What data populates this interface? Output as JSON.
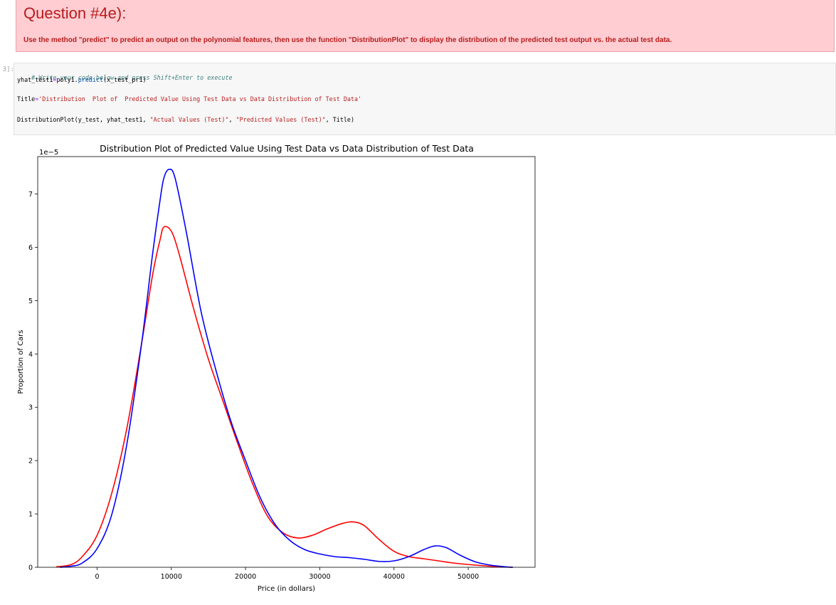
{
  "alert": {
    "heading": "Question #4e):",
    "instruction": "Use the method \"predict\" to predict an output on the polynomial features, then use the function \"DistributionPlot\" to display the distribution of the predicted test output vs. the actual test data."
  },
  "cell": {
    "prompt": "3]:",
    "comment": "# Write your code below and press Shift+Enter to execute",
    "line1_prefix": "yhat_test1",
    "line1_eq": "=",
    "line1_mid": "poly1.",
    "line1_fn": "predict",
    "line1_args": "(x_test_pr1)",
    "line2_var": "Title",
    "line2_eq": "=",
    "line2_str": "'Distribution  Plot of  Predicted Value Using Test Data vs Data Distribution of Test Data'",
    "line3_call": "DistributionPlot(y_test, yhat_test1, ",
    "line3_str1": "\"Actual Values (Test)\"",
    "line3_sep": ", ",
    "line3_str2": "\"Predicted Values (Test)\"",
    "line3_end": ", Title)"
  },
  "chart_data": {
    "type": "line",
    "title": "Distribution  Plot of  Predicted Value Using Test Data vs Data Distribution of Test Data",
    "xlabel": "Price (in dollars)",
    "ylabel": "Proportion of Cars",
    "scale_label": "1e−5",
    "xlim": [
      -8000,
      59000
    ],
    "ylim": [
      0,
      7.7
    ],
    "x_ticks": [
      0,
      10000,
      20000,
      30000,
      40000,
      50000
    ],
    "x_tick_labels": [
      "0",
      "10000",
      "20000",
      "30000",
      "40000",
      "50000"
    ],
    "y_ticks": [
      0,
      1,
      2,
      3,
      4,
      5,
      6,
      7
    ],
    "y_tick_labels": [
      "0",
      "1",
      "2",
      "3",
      "4",
      "5",
      "6",
      "7"
    ],
    "grid": false,
    "series": [
      {
        "color": "#ff0000",
        "points": [
          [
            -5500,
            0.01
          ],
          [
            -3500,
            0.05
          ],
          [
            -2000,
            0.2
          ],
          [
            0,
            0.6
          ],
          [
            2000,
            1.4
          ],
          [
            4000,
            2.6
          ],
          [
            6000,
            4.2
          ],
          [
            7500,
            5.5
          ],
          [
            8500,
            6.15
          ],
          [
            9000,
            6.38
          ],
          [
            10000,
            6.3
          ],
          [
            11000,
            5.9
          ],
          [
            13000,
            4.85
          ],
          [
            15000,
            3.9
          ],
          [
            17000,
            3.1
          ],
          [
            19000,
            2.3
          ],
          [
            21000,
            1.55
          ],
          [
            23000,
            0.95
          ],
          [
            25000,
            0.65
          ],
          [
            27000,
            0.55
          ],
          [
            29000,
            0.6
          ],
          [
            31000,
            0.72
          ],
          [
            33000,
            0.82
          ],
          [
            34500,
            0.85
          ],
          [
            36000,
            0.78
          ],
          [
            38000,
            0.52
          ],
          [
            40000,
            0.3
          ],
          [
            42000,
            0.2
          ],
          [
            44000,
            0.16
          ],
          [
            46000,
            0.12
          ],
          [
            48000,
            0.08
          ],
          [
            51000,
            0.04
          ],
          [
            54000,
            0.01
          ],
          [
            56000,
            0.0
          ]
        ]
      },
      {
        "color": "#0000ff",
        "points": [
          [
            -5000,
            0.0
          ],
          [
            -3500,
            0.02
          ],
          [
            -2000,
            0.08
          ],
          [
            0,
            0.35
          ],
          [
            2000,
            1.0
          ],
          [
            4000,
            2.3
          ],
          [
            6000,
            4.2
          ],
          [
            7500,
            5.9
          ],
          [
            8500,
            6.9
          ],
          [
            9000,
            7.3
          ],
          [
            9700,
            7.46
          ],
          [
            10500,
            7.3
          ],
          [
            12000,
            6.3
          ],
          [
            14000,
            4.8
          ],
          [
            16000,
            3.7
          ],
          [
            18000,
            2.75
          ],
          [
            20000,
            2.0
          ],
          [
            22000,
            1.3
          ],
          [
            24000,
            0.8
          ],
          [
            26000,
            0.5
          ],
          [
            28000,
            0.33
          ],
          [
            30000,
            0.25
          ],
          [
            32000,
            0.2
          ],
          [
            34000,
            0.18
          ],
          [
            36000,
            0.15
          ],
          [
            38000,
            0.11
          ],
          [
            40000,
            0.12
          ],
          [
            42000,
            0.2
          ],
          [
            44000,
            0.33
          ],
          [
            45500,
            0.4
          ],
          [
            47000,
            0.37
          ],
          [
            49000,
            0.22
          ],
          [
            51000,
            0.1
          ],
          [
            53000,
            0.04
          ],
          [
            55000,
            0.01
          ],
          [
            56000,
            0.0
          ]
        ]
      }
    ]
  }
}
